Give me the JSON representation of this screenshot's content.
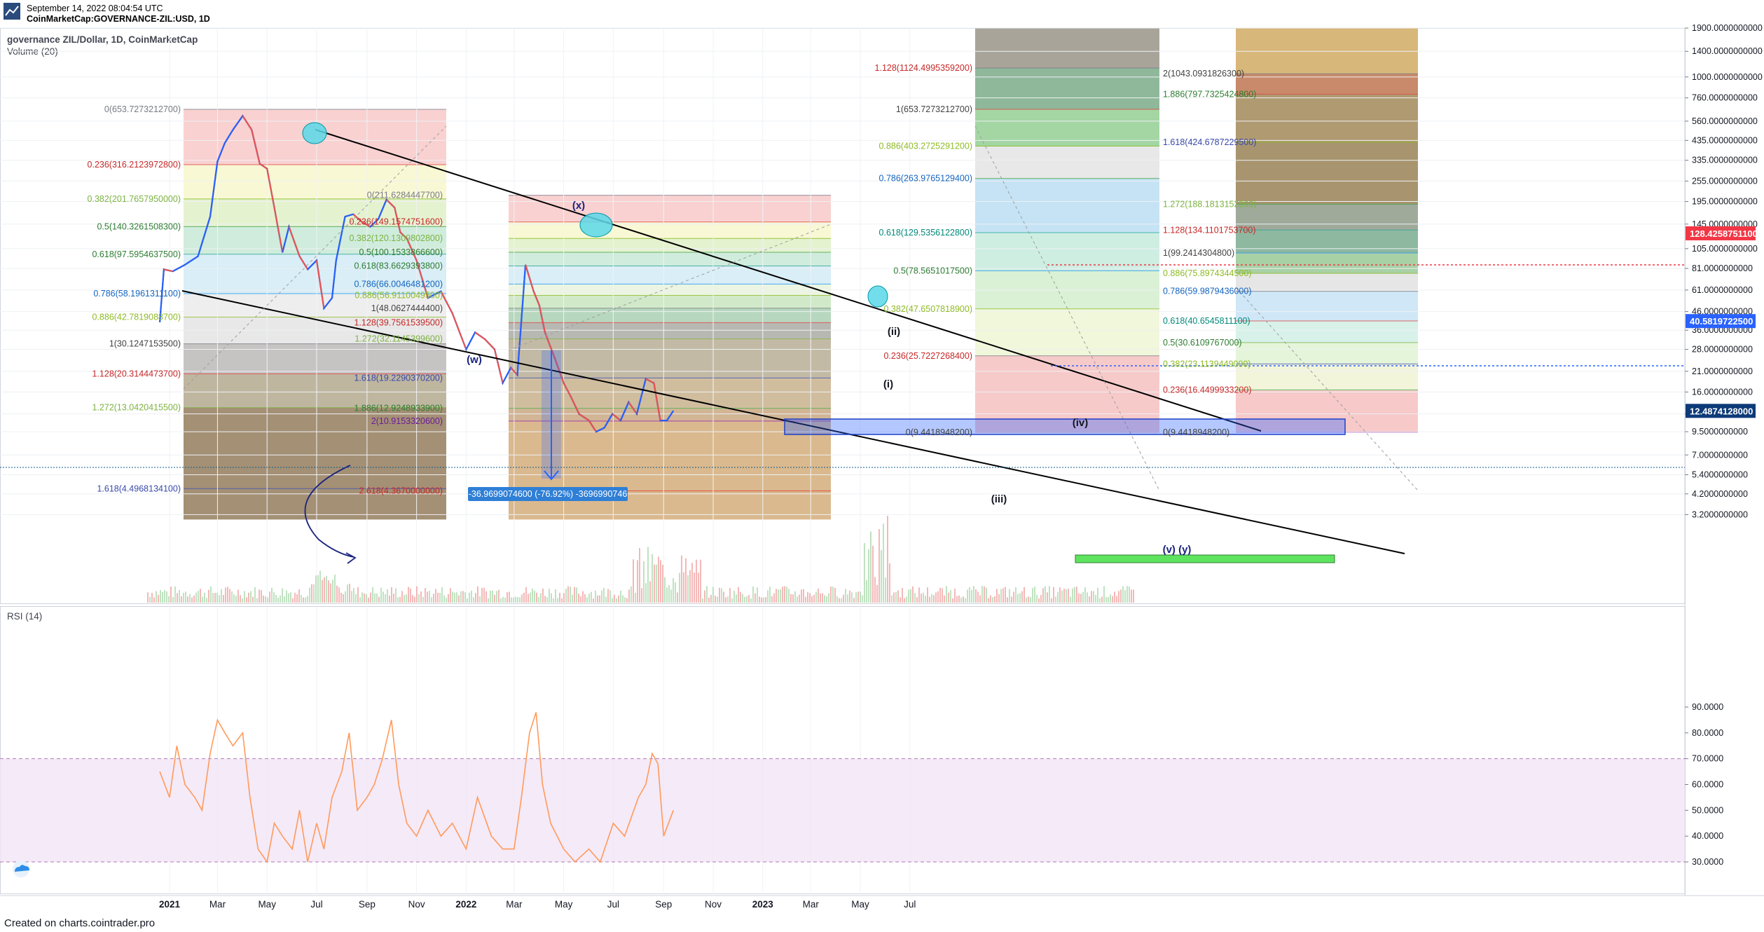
{
  "header": {
    "timestamp": "September 14, 2022 08:04:54 UTC",
    "symbol": "CoinMarketCap:GOVERNANCE-ZIL:USD, 1D",
    "title": "governance ZIL/Dollar, 1D, CoinMarketCap",
    "volume_label": "Volume (20)"
  },
  "footer": {
    "credit": "Created on charts.cointrader.pro"
  },
  "colors": {
    "up": "#2962ff",
    "down": "#ef5350",
    "rsi_line": "#ff9a5c",
    "rsi_band": "#f3e5f5",
    "trendline": "#000000"
  },
  "chart_data": [
    {
      "type": "line",
      "title": "governance ZIL/Dollar, 1D, CoinMarketCap",
      "scale": "log",
      "ylim": [
        3.0,
        1900
      ],
      "y_ticks": [
        "1900.0000000000",
        "1400.0000000000",
        "1000.0000000000",
        "760.0000000000",
        "560.0000000000",
        "435.0000000000",
        "335.0000000000",
        "255.0000000000",
        "195.0000000000",
        "145.0000000000",
        "105.0000000000",
        "81.0000000000",
        "61.0000000000",
        "46.0000000000",
        "36.0000000000",
        "28.0000000000",
        "21.0000000000",
        "16.0000000000",
        "12.0000000000",
        "9.5000000000",
        "7.0000000000",
        "5.4000000000",
        "4.2000000000",
        "3.2000000000"
      ],
      "x_ticks": [
        "2021",
        "Mar",
        "May",
        "Jul",
        "Sep",
        "Nov",
        "2022",
        "Mar",
        "May",
        "Jul",
        "Sep",
        "Nov",
        "2023",
        "Mar",
        "May",
        "Jul"
      ],
      "price_series": {
        "name": "GOVERNANCE-ZIL:USD",
        "dates": [
          "2020-12-20",
          "2020-12-25",
          "2021-01-05",
          "2021-01-20",
          "2021-02-05",
          "2021-02-20",
          "2021-03-01",
          "2021-03-10",
          "2021-03-20",
          "2021-04-01",
          "2021-04-12",
          "2021-04-22",
          "2021-05-01",
          "2021-05-10",
          "2021-05-20",
          "2021-05-28",
          "2021-06-10",
          "2021-06-20",
          "2021-07-01",
          "2021-07-10",
          "2021-07-20",
          "2021-07-25",
          "2021-08-05",
          "2021-08-15",
          "2021-08-25",
          "2021-09-05",
          "2021-09-15",
          "2021-09-25",
          "2021-10-05",
          "2021-10-12",
          "2021-10-20",
          "2021-11-01",
          "2021-11-15",
          "2021-12-01",
          "2021-12-15",
          "2022-01-01",
          "2022-01-12",
          "2022-01-24",
          "2022-02-05",
          "2022-02-15",
          "2022-02-25",
          "2022-03-05",
          "2022-03-15",
          "2022-03-25",
          "2022-04-01",
          "2022-04-08",
          "2022-04-20",
          "2022-05-01",
          "2022-05-10",
          "2022-05-20",
          "2022-06-01",
          "2022-06-10",
          "2022-06-20",
          "2022-06-30",
          "2022-07-10",
          "2022-07-20",
          "2022-07-30",
          "2022-08-10",
          "2022-08-20",
          "2022-08-28",
          "2022-09-05",
          "2022-09-13"
        ],
        "values": [
          40,
          80,
          78,
          85,
          95,
          160,
          330,
          420,
          500,
          600,
          500,
          320,
          300,
          180,
          100,
          140,
          95,
          80,
          90,
          48,
          55,
          90,
          160,
          165,
          150,
          140,
          155,
          200,
          180,
          130,
          120,
          90,
          55,
          60,
          45,
          28,
          35,
          32,
          28,
          18,
          22,
          20,
          85,
          60,
          50,
          35,
          25,
          18,
          15,
          12,
          11,
          9.5,
          10,
          12,
          11,
          14,
          12,
          19,
          18,
          11,
          11,
          12.5
        ]
      },
      "price_labels": [
        {
          "value": 128.42587511,
          "text": "128.4258751100",
          "color": "#f23645"
        },
        {
          "value": 40.58197225,
          "text": "40.5819722500",
          "color": "#2962ff"
        },
        {
          "value": 12.4874128,
          "text": "12.4874128000",
          "color": "#0d3a78"
        }
      ],
      "fib_retracements": [
        {
          "levels": [
            {
              "text": "0(653.7273212700)",
              "value": 653.73
            },
            {
              "text": "0.236(316.2123972800)",
              "value": 316.21
            },
            {
              "text": "0.382(201.7657950000)",
              "value": 201.77
            },
            {
              "text": "0.5(140.3261508300)",
              "value": 140.33
            },
            {
              "text": "0.618(97.5954637500)",
              "value": 97.6
            },
            {
              "text": "0.786(58.1961311100)",
              "value": 58.2
            },
            {
              "text": "0.886(42.7819088700)",
              "value": 42.78
            },
            {
              "text": "1(30.1247153500)",
              "value": 30.12
            },
            {
              "text": "1.128(20.3144473700)",
              "value": 20.31
            },
            {
              "text": "1.272(13.0420415500)",
              "value": 13.04
            },
            {
              "text": "1.618(4.4968134100)",
              "value": 4.5
            }
          ]
        },
        {
          "levels": [
            {
              "text": "0(211.6284447700)",
              "value": 211.63
            },
            {
              "text": "0.236(149.1574751600)",
              "value": 149.16
            },
            {
              "text": "0.382(120.1309802800)",
              "value": 120.13
            },
            {
              "text": "0.5(100.1533866600)",
              "value": 100.15
            },
            {
              "text": "0.618(83.6629393800)",
              "value": 83.66
            },
            {
              "text": "0.786(66.0046481200)",
              "value": 66.0
            },
            {
              "text": "0.886(56.9110049500)",
              "value": 56.91
            },
            {
              "text": "1(48.0627444400)",
              "value": 48.06
            },
            {
              "text": "1.128(39.7561539500)",
              "value": 39.76
            },
            {
              "text": "1.272(32.1145399600)",
              "value": 32.11
            },
            {
              "text": "1.618(19.2290370200)",
              "value": 19.23
            },
            {
              "text": "1.886(12.9248933900)",
              "value": 12.92
            },
            {
              "text": "2(10.9153320600)",
              "value": 10.92
            },
            {
              "text": "2.618(4.3670000000)",
              "value": 4.37
            }
          ]
        },
        {
          "levels": [
            {
              "text": "1.128(1124.4995359200)",
              "value": 1124.5
            },
            {
              "text": "1(653.7273212700)",
              "value": 653.73
            },
            {
              "text": "0.886(403.2725291200)",
              "value": 403.27
            },
            {
              "text": "0.786(263.9765129400)",
              "value": 263.98
            },
            {
              "text": "0.618(129.5356122800)",
              "value": 129.54
            },
            {
              "text": "0.5(78.5651017500)",
              "value": 78.57
            },
            {
              "text": "0.382(47.6507818900)",
              "value": 47.65
            },
            {
              "text": "0.236(25.7227268400)",
              "value": 25.72
            },
            {
              "text": "0(9.4418948200)",
              "value": 9.44
            }
          ]
        },
        {
          "levels": [
            {
              "text": "2(1043.0931826300)",
              "value": 1043.09
            },
            {
              "text": "1.886(797.7325424800)",
              "value": 797.73
            },
            {
              "text": "1.618(424.6787229500)",
              "value": 424.68
            },
            {
              "text": "1.272(188.1813152500)",
              "value": 188.18
            },
            {
              "text": "1.128(134.1101753700)",
              "value": 134.11
            },
            {
              "text": "1(99.2414304800)",
              "value": 99.24
            },
            {
              "text": "0.886(75.8974344500)",
              "value": 75.9
            },
            {
              "text": "0.786(59.9879436000)",
              "value": 59.99
            },
            {
              "text": "0.618(40.6545811100)",
              "value": 40.65
            },
            {
              "text": "0.5(30.6109767000)",
              "value": 30.61
            },
            {
              "text": "0.382(23.1139449000)",
              "value": 23.11
            },
            {
              "text": "0.236(16.4499933200)",
              "value": 16.45
            },
            {
              "text": "0(9.4418948200)",
              "value": 9.44
            }
          ]
        }
      ],
      "wave_labels": [
        "(x)",
        "(w)",
        "(i)",
        "(ii)",
        "(iii)",
        "(iv)",
        "(v)  (y)"
      ],
      "measure_label": "-36.9699074600 (-76.92%) -3696990746"
    },
    {
      "type": "line",
      "title": "RSI (14)",
      "ylim": [
        25,
        95
      ],
      "y_ticks": [
        "90.0000",
        "80.0000",
        "70.0000",
        "60.0000",
        "50.0000",
        "40.0000",
        "30.0000"
      ],
      "bands": [
        30,
        70
      ],
      "series": [
        {
          "dates": [
            "2020-12-20",
            "2021-01-01",
            "2021-01-10",
            "2021-01-20",
            "2021-02-01",
            "2021-02-10",
            "2021-02-20",
            "2021-03-01",
            "2021-03-10",
            "2021-03-20",
            "2021-04-01",
            "2021-04-10",
            "2021-04-20",
            "2021-05-01",
            "2021-05-10",
            "2021-05-20",
            "2021-06-01",
            "2021-06-10",
            "2021-06-20",
            "2021-07-01",
            "2021-07-10",
            "2021-07-20",
            "2021-08-01",
            "2021-08-10",
            "2021-08-20",
            "2021-09-01",
            "2021-09-10",
            "2021-09-20",
            "2021-10-01",
            "2021-10-10",
            "2021-10-20",
            "2021-11-01",
            "2021-11-15",
            "2021-12-01",
            "2021-12-15",
            "2022-01-01",
            "2022-01-15",
            "2022-02-01",
            "2022-02-15",
            "2022-03-01",
            "2022-03-10",
            "2022-03-20",
            "2022-03-28",
            "2022-04-05",
            "2022-04-15",
            "2022-05-01",
            "2022-05-15",
            "2022-06-01",
            "2022-06-15",
            "2022-07-01",
            "2022-07-15",
            "2022-08-01",
            "2022-08-10",
            "2022-08-18",
            "2022-08-25",
            "2022-09-01",
            "2022-09-13"
          ],
          "values": [
            65,
            55,
            75,
            60,
            55,
            50,
            72,
            85,
            80,
            75,
            80,
            55,
            35,
            30,
            45,
            40,
            35,
            50,
            30,
            45,
            35,
            55,
            65,
            80,
            50,
            55,
            60,
            70,
            85,
            60,
            45,
            40,
            50,
            40,
            45,
            35,
            55,
            40,
            35,
            35,
            55,
            80,
            88,
            60,
            45,
            35,
            30,
            35,
            30,
            45,
            40,
            55,
            60,
            72,
            68,
            40,
            50
          ]
        }
      ]
    }
  ]
}
